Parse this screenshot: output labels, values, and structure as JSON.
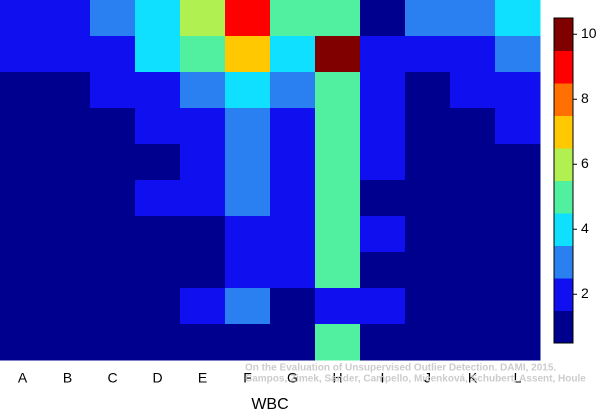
{
  "chart_data": {
    "type": "heatmap",
    "xlabel": "WBC",
    "categories": [
      "A",
      "B",
      "C",
      "D",
      "E",
      "F",
      "G",
      "H",
      "I",
      "J",
      "K",
      "L"
    ],
    "values": [
      [
        2,
        2,
        3,
        4,
        6,
        9,
        5,
        5,
        1,
        3,
        3,
        4
      ],
      [
        2,
        2,
        2,
        4,
        5,
        7,
        4,
        10,
        2,
        2,
        2,
        3
      ],
      [
        1,
        1,
        2,
        2,
        3,
        4,
        3,
        5,
        2,
        1,
        2,
        2
      ],
      [
        1,
        1,
        1,
        2,
        2,
        3,
        2,
        5,
        2,
        1,
        1,
        2
      ],
      [
        1,
        1,
        1,
        1,
        2,
        3,
        2,
        5,
        2,
        1,
        1,
        1
      ],
      [
        1,
        1,
        1,
        2,
        2,
        3,
        2,
        5,
        1,
        1,
        1,
        1
      ],
      [
        1,
        1,
        1,
        1,
        1,
        2,
        2,
        5,
        2,
        1,
        1,
        1
      ],
      [
        1,
        1,
        1,
        1,
        1,
        2,
        2,
        5,
        1,
        1,
        1,
        1
      ],
      [
        1,
        1,
        1,
        1,
        2,
        3,
        1,
        2,
        2,
        1,
        1,
        1
      ],
      [
        1,
        1,
        1,
        1,
        1,
        1,
        1,
        5,
        1,
        1,
        1,
        1
      ]
    ],
    "colormap": [
      "#00008f",
      "#0f0fef",
      "#2a80f0",
      "#10e0ff",
      "#50f0a0",
      "#b0f050",
      "#ffc800",
      "#ff7000",
      "#ff0000",
      "#800000"
    ],
    "clim": [
      0.5,
      10.5
    ],
    "cticks": [
      2,
      4,
      6,
      8,
      10
    ],
    "annotations": [
      "On the Evaluation of Unsupervised Outlier Detection. DAMI, 2015.",
      "Campos, Zimek, Sander, Campello, Micenková, Schubert, Assent, Houle"
    ]
  }
}
